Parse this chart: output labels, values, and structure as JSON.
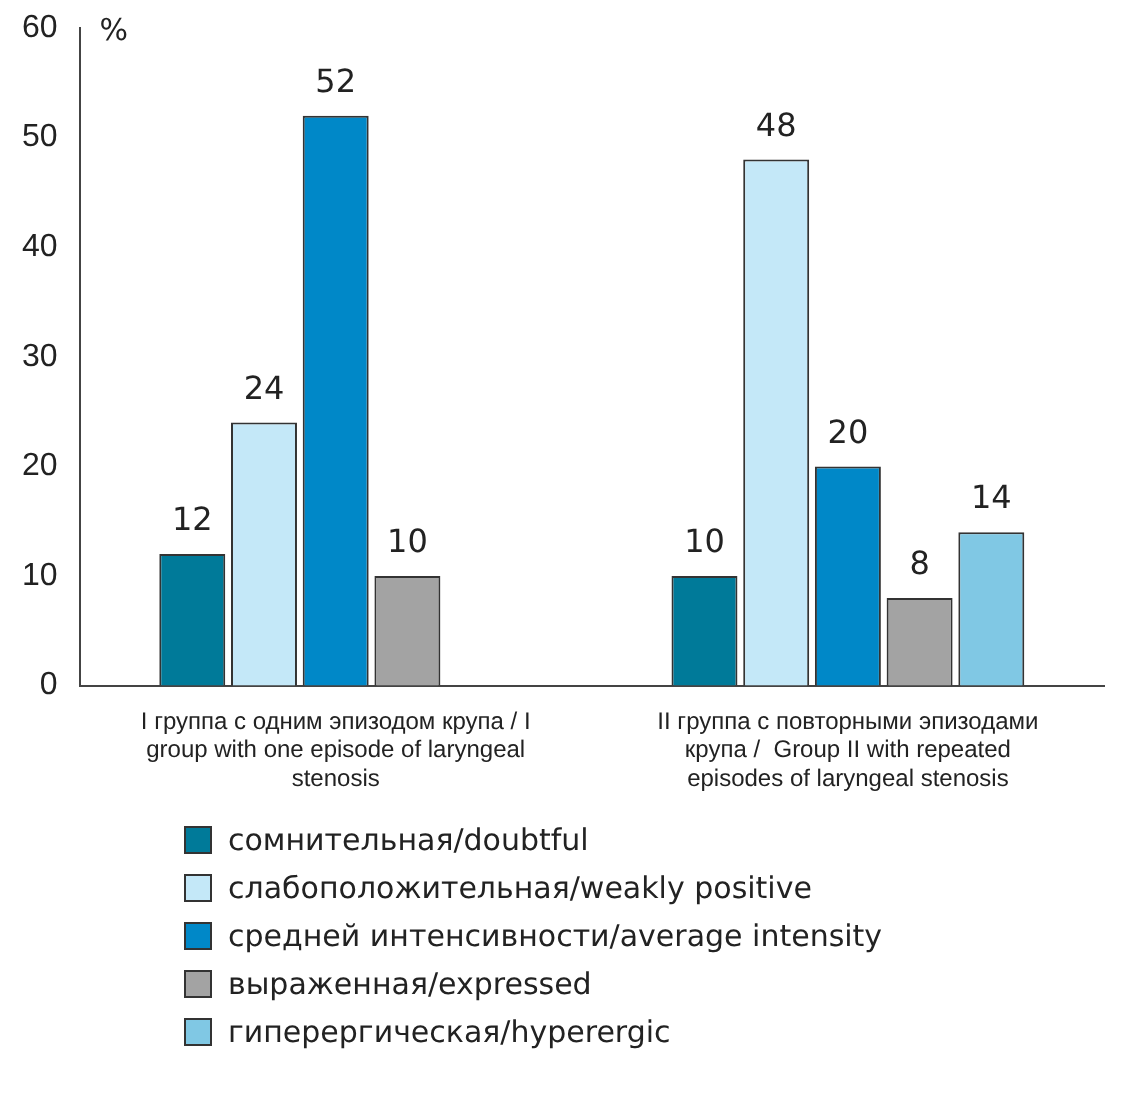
{
  "chart_data": {
    "type": "bar",
    "ylabel": "%",
    "categories": [
      "I группа с одним эпизодом крупа / I group with one episode of laryngeal stenosis",
      "II группа с повторными эпизодами крупа /  Group II with repeated episodes of laryngeal stenosis"
    ],
    "series": [
      {
        "name": "сомнительная/doubtful",
        "color": "#007a99",
        "values": [
          12,
          10
        ]
      },
      {
        "name": "слабоположительная/weakly positive",
        "color": "#c4e8f8",
        "values": [
          24,
          48
        ]
      },
      {
        "name": "средней интенсивности/average intensity",
        "color": "#0088c8",
        "values": [
          52,
          20
        ]
      },
      {
        "name": "выраженная/expressed",
        "color": "#a3a3a3",
        "values": [
          10,
          8
        ]
      },
      {
        "name": "гиперергическая/hyperergic",
        "color": "#80c8e4",
        "values": [
          null,
          14
        ]
      }
    ],
    "ylim": [
      0,
      60
    ],
    "yticks": [
      0,
      10,
      20,
      30,
      40,
      50,
      60
    ],
    "grid": false,
    "data_labels": true,
    "legend": "bottom"
  }
}
